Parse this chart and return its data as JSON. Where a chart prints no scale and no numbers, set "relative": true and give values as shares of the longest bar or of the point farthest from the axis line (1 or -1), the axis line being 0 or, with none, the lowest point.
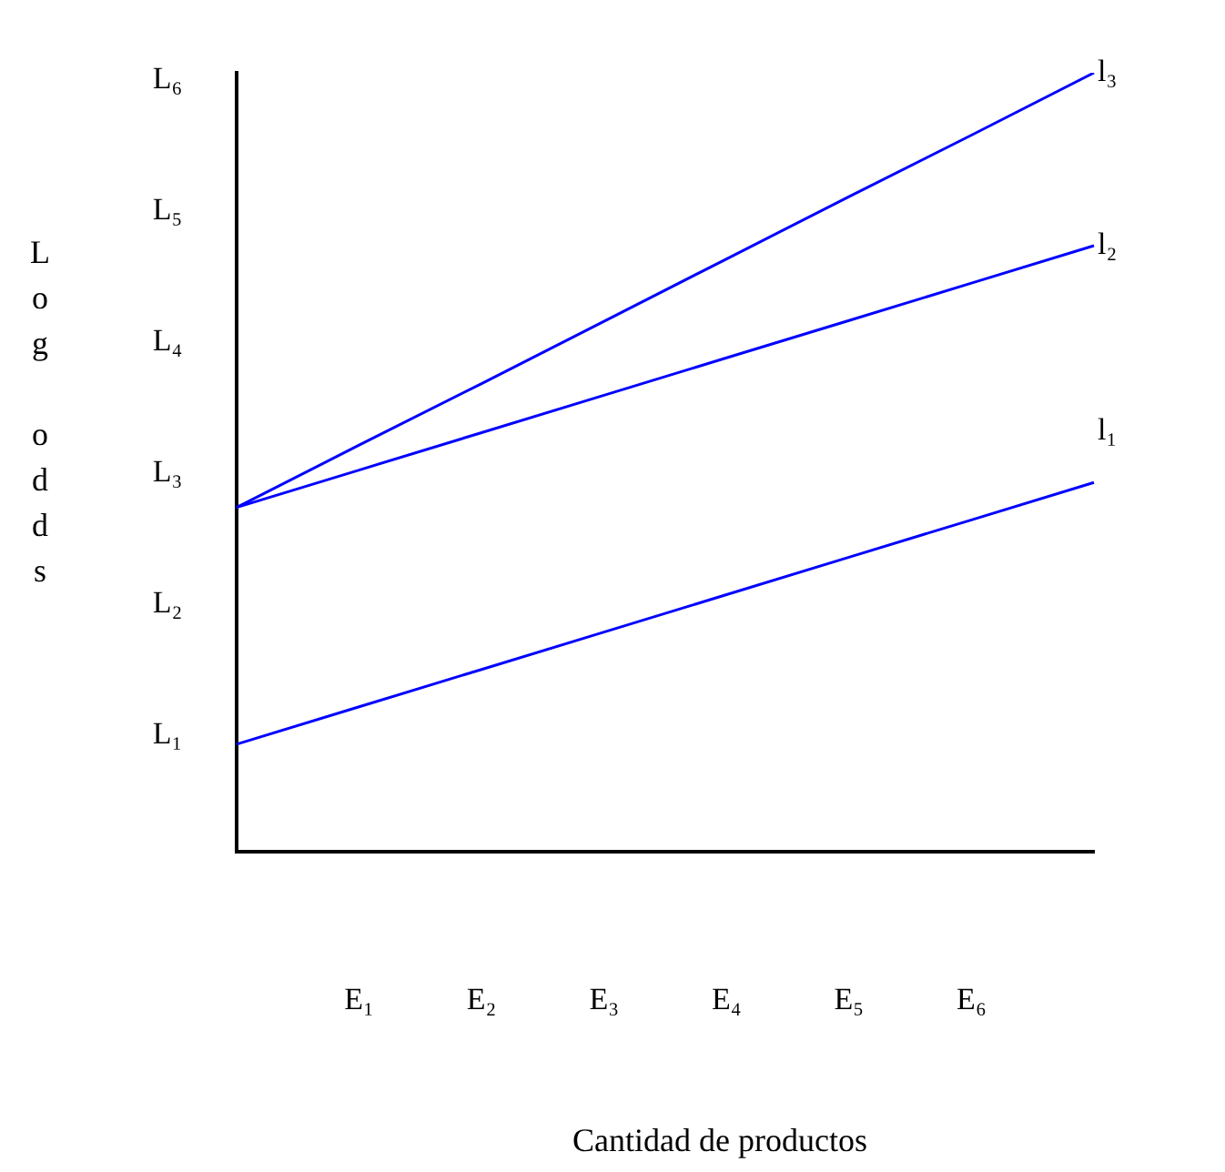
{
  "chart_data": {
    "type": "line",
    "relative": true,
    "ylabel": "Log odds",
    "xlabel": "Cantidad de productos",
    "categories": [
      null,
      "E₁",
      "E₂",
      "E₃",
      "E₄",
      "E₅",
      "E₆",
      null
    ],
    "annotations": [
      "L₁",
      "L₂",
      "L₃",
      "L₄",
      "L₅",
      "L₆"
    ],
    "series": [
      {
        "name": "l₁",
        "color": "#0000ff",
        "values": [
          0.138,
          0.186,
          0.234,
          0.282,
          0.33,
          0.378,
          0.426,
          0.474
        ]
      },
      {
        "name": "l₂",
        "color": "#0000ff",
        "values": [
          0.442,
          0.49,
          0.538,
          0.586,
          0.634,
          0.682,
          0.73,
          0.778
        ]
      },
      {
        "name": "l₃",
        "color": "#0000ff",
        "values": [
          0.442,
          0.522,
          0.601,
          0.681,
          0.761,
          0.841,
          0.92,
          1.0
        ]
      }
    ],
    "grid": false,
    "legend": false,
    "marker": "none"
  }
}
